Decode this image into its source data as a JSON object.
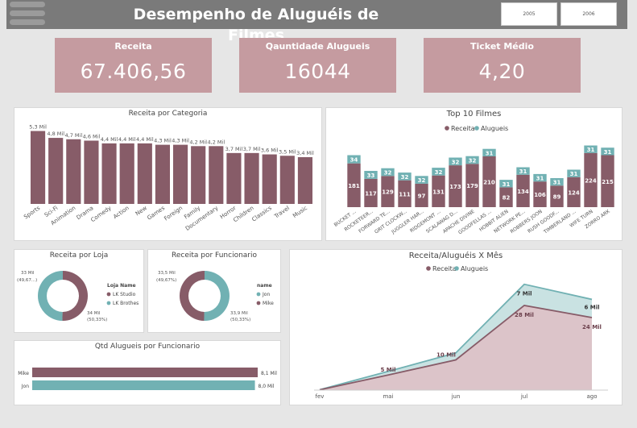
{
  "header": {
    "title": "Desempenho de Aluguéis de Filmes",
    "year_buttons": [
      "2005",
      "2006"
    ]
  },
  "kpis": [
    {
      "label": "Receita",
      "value": "67.406,56"
    },
    {
      "label": "Qauntidade Alugueis",
      "value": "16044"
    },
    {
      "label": "Ticket Médio",
      "value": "4,20"
    }
  ],
  "colors": {
    "receita": "#875c68",
    "alugueis": "#71b1b3",
    "kpi_bg": "#c59ba0"
  },
  "chart_data": [
    {
      "type": "bar",
      "title": "Receita por Categoria",
      "categories": [
        "Sports",
        "Sci-Fi",
        "Animation",
        "Drama",
        "Comedy",
        "Action",
        "New",
        "Games",
        "Foreign",
        "Family",
        "Documentary",
        "Horror",
        "Children",
        "Classics",
        "Travel",
        "Music"
      ],
      "values": [
        5.3,
        4.8,
        4.7,
        4.6,
        4.4,
        4.4,
        4.4,
        4.3,
        4.3,
        4.2,
        4.2,
        3.7,
        3.7,
        3.6,
        3.5,
        3.4
      ],
      "labels": [
        "5,3 Mil",
        "4,8 Mil",
        "4,7 Mil",
        "4,6 Mil",
        "4,4 Mil",
        "4,4 Mil",
        "4,4 Mil",
        "4,3 Mil",
        "4,3 Mil",
        "4,2 Mil",
        "4,2 Mil",
        "3,7 Mil",
        "3,7 Mil",
        "3,6 Mil",
        "3,5 Mil",
        "3,4 Mil"
      ],
      "ylim": [
        0,
        5.8
      ]
    },
    {
      "type": "bar",
      "title": "Top 10 Filmes",
      "legend": [
        "Receita",
        "Alugueis"
      ],
      "categories": [
        "BUCKET ...",
        "ROCKETEER...",
        "FORWARD TE...",
        "GRIT CLOCKW...",
        "JUGGLER HAR...",
        "RIDGEMONT ...",
        "SCALAWAG D...",
        "APACHE DIVINE",
        "GOODFELLAS ...",
        "HOBBIT ALIEN",
        "NETWORK PE...",
        "ROBBERS JOON",
        "RUSH GOODF...",
        "TIMBERLAND ...",
        "WIFE TURN",
        "ZORRO ARK"
      ],
      "series": [
        {
          "name": "Receita",
          "values": [
            181,
            117,
            129,
            111,
            97,
            131,
            173,
            179,
            210,
            82,
            134,
            106,
            89,
            124,
            224,
            215
          ]
        },
        {
          "name": "Alugueis",
          "values": [
            34,
            33,
            32,
            32,
            32,
            32,
            32,
            32,
            31,
            31,
            31,
            31,
            31,
            31,
            31,
            31
          ]
        }
      ],
      "ylim": [
        0,
        270
      ]
    },
    {
      "type": "pie",
      "title": "Receita por Loja",
      "legend_title": "Loja Name",
      "slices": [
        {
          "name": "LK Studio",
          "value": 33.9,
          "label": "34 Mil",
          "pct": "(50,33%)"
        },
        {
          "name": "LK Brothes",
          "value": 33.5,
          "label": "33 Mil",
          "pct": "(49,67...)"
        }
      ]
    },
    {
      "type": "pie",
      "title": "Receita por Funcionario",
      "legend_title": "name",
      "slices": [
        {
          "name": "Jon",
          "value": 33.9,
          "label": "33,9 Mil",
          "pct": "(50,33%)"
        },
        {
          "name": "Mike",
          "value": 33.5,
          "label": "33,5 Mil",
          "pct": "(49,67%)"
        }
      ]
    },
    {
      "type": "bar",
      "title": "Qtd Alugueis por Funcionario",
      "categories": [
        "Mike",
        "Jon"
      ],
      "values": [
        8.1,
        8.0
      ],
      "labels": [
        "8,1 Mil",
        "8,0 Mil"
      ],
      "xlim": [
        0,
        8.1
      ]
    },
    {
      "type": "area",
      "title": "Receita/Aluguéis X Mês",
      "legend": [
        "Receita",
        "Alugueis"
      ],
      "categories": [
        "fev",
        "mai",
        "jun",
        "jul",
        "ago"
      ],
      "series": [
        {
          "name": "Receita",
          "values": [
            0.1,
            5,
            10,
            28,
            24
          ],
          "labels": [
            "",
            "5 Mil",
            "10 Mil",
            "28 Mil",
            "24 Mil"
          ]
        },
        {
          "name": "Alugueis",
          "values": [
            0.05,
            1.2,
            2.3,
            7,
            6
          ],
          "labels": [
            "",
            "",
            "",
            "7 Mil",
            "6 Mil"
          ]
        }
      ]
    }
  ]
}
